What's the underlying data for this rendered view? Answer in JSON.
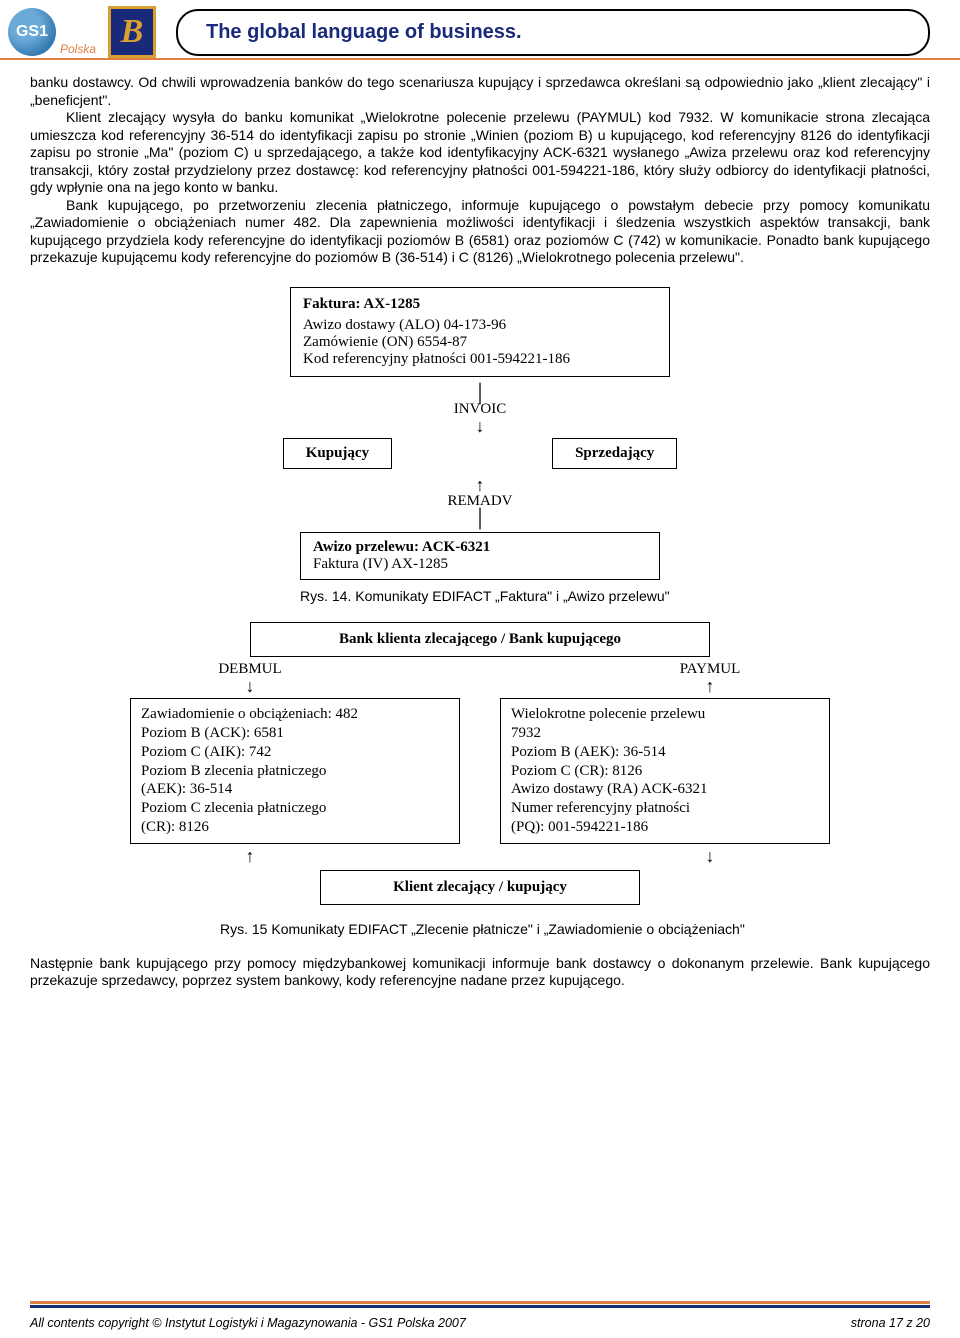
{
  "header": {
    "logo_text": "GS1",
    "logo_sub": "Polska",
    "logo_b": "B",
    "title": "The global language of business."
  },
  "paragraphs": {
    "p1": "banku dostawcy. Od chwili wprowadzenia banków do tego scenariusza kupujący i sprzedawca określani są odpowiednio jako „klient zlecający\" i „beneficjent\".",
    "p2": "Klient zlecający wysyła do banku komunikat „Wielokrotne polecenie przelewu (PAYMUL) kod 7932. W komunikacie strona zlecająca umieszcza kod referencyjny 36-514 do identyfikacji zapisu po stronie „Winien (poziom B) u kupującego, kod referencyjny 8126 do identyfikacji zapisu po stronie „Ma\" (poziom C) u sprzedającego, a także kod identyfikacyjny ACK-6321 wysłanego „Awiza przelewu oraz kod referencyjny transakcji, który został przydzielony przez dostawcę: kod referencyjny płatności 001-594221-186, który służy odbiorcy do identyfikacji płatności, gdy wpłynie ona na jego konto w banku.",
    "p3": "Bank kupującego, po przetworzeniu zlecenia płatniczego, informuje kupującego o powstałym debecie przy pomocy komunikatu „Zawiadomienie o obciążeniach numer 482. Dla zapewnienia możliwości identyfikacji i śledzenia wszystkich aspektów transakcji, bank kupującego przydziela kody referencyjne do identyfikacji poziomów B (6581) oraz poziomów C (742) w komunikacie. Ponadto bank kupującego przekazuje kupującemu kody referencyjne do poziomów B (36-514) i C (8126) „Wielokrotnego polecenia przelewu\"."
  },
  "fig14": {
    "faktura_title": "Faktura: AX-1285",
    "faktura_l1": "Awizo dostawy (ALO) 04-173-96",
    "faktura_l2": "Zamówienie (ON) 6554-87",
    "faktura_l3": "Kod referencyjny płatności 001-594221-186",
    "invoic": "INVOIC",
    "left_box": "Kupujący",
    "right_box": "Sprzedający",
    "remadv": "REMADV",
    "awizo_title": "Awizo przelewu: ACK-6321",
    "awizo_l1": "Faktura (IV) AX-1285",
    "caption": "Rys. 14. Komunikaty EDIFACT „Faktura\" i „Awizo przelewu\""
  },
  "fig15": {
    "bank_box": "Bank klienta zlecającego / Bank kupującego",
    "left_label": "DEBMUL",
    "right_label": "PAYMUL",
    "left_panel": {
      "l1": "Zawiadomienie o obciążeniach: 482",
      "l2": "Poziom B (ACK): 6581",
      "l3": "Poziom C (AIK): 742",
      "l4": "Poziom B zlecenia płatniczego",
      "l5": "(AEK): 36-514",
      "l6": "Poziom C zlecenia płatniczego",
      "l7": "(CR): 8126"
    },
    "right_panel": {
      "l1": "Wielokrotne polecenie przelewu",
      "l2": "7932",
      "l3": "Poziom B (AEK): 36-514",
      "l4": "Poziom C (CR): 8126",
      "l5": "Awizo dostawy (RA) ACK-6321",
      "l6": "Numer referencyjny płatności",
      "l7": "(PQ): 001-594221-186"
    },
    "client_box": "Klient zlecający / kupujący",
    "caption": "Rys. 15  Komunikaty EDIFACT „Zlecenie płatnicze\" i „Zawiadomienie o obciążeniach\""
  },
  "post": "Następnie bank kupującego przy pomocy międzybankowej komunikacji informuje bank dostawcy o dokonanym przelewie. Bank kupującego przekazuje sprzedawcy, poprzez system bankowy, kody referencyjne nadane przez kupującego.",
  "footer": {
    "left": "All contents copyright © Instytut Logistyki i Magazynowania - GS1 Polska 2007",
    "right": "strona 17 z 20"
  },
  "colors": {
    "orange": "#e08040",
    "blue": "#1a2a7a",
    "text": "#000000",
    "bg": "#ffffff"
  }
}
